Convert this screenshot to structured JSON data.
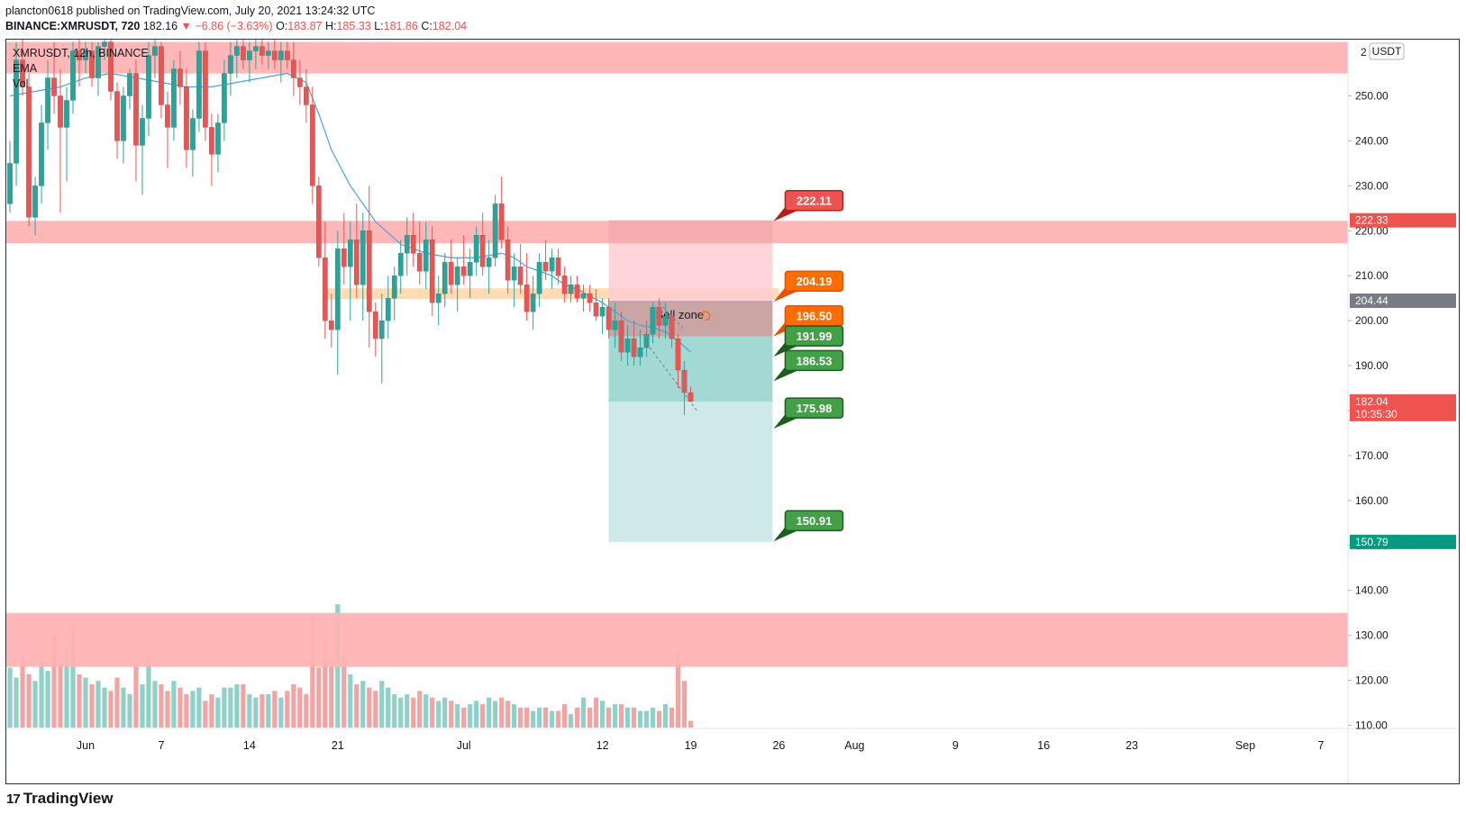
{
  "header": {
    "publisher": "plancton0618 published on TradingView.com, July 20, 2021 13:24:32 UTC",
    "symbol": "BINANCE:XMRUSDT, 720",
    "last": "182.16",
    "change": "−6.86 (−3.63%)",
    "o_label": "O:",
    "o": "183.87",
    "h_label": "H:",
    "h": "185.33",
    "l_label": "L:",
    "l": "181.86",
    "c_label": "C:",
    "c": "182.04"
  },
  "legend": {
    "symbol": "XMRUSDT, 12h, BINANCE",
    "ema": "EMA",
    "vol": "Vol"
  },
  "brand": {
    "name": "TradingView",
    "mark": "17"
  },
  "currency": "USDT",
  "colors": {
    "up": "#26a69a",
    "down": "#ef5350",
    "ema": "#4aa3df",
    "zone": "#ffb3b3"
  },
  "chart_data": {
    "type": "candlestick",
    "y_axis": {
      "ticks": [
        "110.00",
        "120.00",
        "130.00",
        "140.00",
        "150.00",
        "160.00",
        "170.00",
        "180.00",
        "190.00",
        "200.00",
        "210.00",
        "220.00",
        "230.00",
        "240.00",
        "250.00"
      ],
      "tick_values": [
        110,
        120,
        130,
        140,
        150,
        160,
        170,
        180,
        190,
        200,
        210,
        220,
        230,
        240,
        250
      ],
      "top_label": "2"
    },
    "x_axis": {
      "ticks": [
        "Jun",
        "7",
        "14",
        "21",
        "Jul",
        "12",
        "19",
        "26",
        "Aug",
        "9",
        "16",
        "23",
        "Sep",
        "7"
      ],
      "tick_days": [
        1,
        7,
        14,
        21,
        31,
        42,
        49,
        56,
        62,
        70,
        77,
        84,
        93,
        99
      ]
    },
    "price_labels": [
      {
        "text": "222.33",
        "value": 222.33,
        "color": "#ef5350"
      },
      {
        "text": "204.44",
        "value": 204.44,
        "color": "#787b86"
      },
      {
        "text": "182.04",
        "value": 182.04,
        "color": "#ef5350",
        "sub": "10:35:30"
      },
      {
        "text": "150.79",
        "value": 150.79,
        "color": "#089981"
      }
    ],
    "zones": [
      {
        "from": 255,
        "to": 262,
        "color": "#ffb3b3"
      },
      {
        "from": 217.2,
        "to": 222.2,
        "color": "#ffb3b3"
      },
      {
        "from": 123,
        "to": 135,
        "color": "#ffb3b3"
      }
    ],
    "orange_band": {
      "from": 204.8,
      "to": 207.2,
      "day_start": 20,
      "day_end": 56
    },
    "position": {
      "day_start": 42.5,
      "day_end": 55.5,
      "stop_zone": {
        "from": 204.44,
        "to": 222.33
      },
      "sell_zone": {
        "from": 196.5,
        "to": 204.44,
        "label": "Sell zone"
      },
      "target_zone": {
        "from": 150.79,
        "to": 196.5
      }
    },
    "callouts": [
      {
        "text": "222.11",
        "value": 222.11,
        "color": "#ef5350",
        "kind": "stop"
      },
      {
        "text": "204.19",
        "value": 204.19,
        "color": "#ff6d00",
        "kind": "entry"
      },
      {
        "text": "196.50",
        "value": 196.5,
        "color": "#ff6d00",
        "kind": "entry"
      },
      {
        "text": "191.99",
        "value": 191.99,
        "color": "#43a047",
        "kind": "target"
      },
      {
        "text": "186.53",
        "value": 186.53,
        "color": "#43a047",
        "kind": "target"
      },
      {
        "text": "175.98",
        "value": 175.98,
        "color": "#43a047",
        "kind": "target"
      },
      {
        "text": "150.91",
        "value": 150.91,
        "color": "#43a047",
        "kind": "target"
      }
    ],
    "candles": [
      [
        -5,
        226,
        240,
        224,
        235
      ],
      [
        -4.5,
        235,
        262,
        230,
        258
      ],
      [
        -4,
        258,
        263,
        250,
        252
      ],
      [
        -3.5,
        252,
        255,
        221,
        223
      ],
      [
        -3,
        223,
        232,
        219,
        230
      ],
      [
        -2.5,
        230,
        248,
        226,
        244
      ],
      [
        -2,
        244,
        258,
        238,
        254
      ],
      [
        -1.5,
        254,
        262,
        246,
        250
      ],
      [
        -1,
        250,
        256,
        224,
        243
      ],
      [
        -0.5,
        243,
        252,
        231,
        249
      ],
      [
        0,
        249,
        262,
        246,
        260
      ],
      [
        0.5,
        260,
        263,
        252,
        258
      ],
      [
        1,
        258,
        262,
        255,
        260
      ],
      [
        1.5,
        260,
        262,
        252,
        254
      ],
      [
        2,
        254,
        262,
        250,
        261
      ],
      [
        2.5,
        261,
        264,
        258,
        262
      ],
      [
        3,
        262,
        263,
        249,
        251
      ],
      [
        3.5,
        251,
        253,
        236,
        240
      ],
      [
        4,
        240,
        252,
        235,
        250
      ],
      [
        4.5,
        250,
        256,
        247,
        255
      ],
      [
        5,
        255,
        258,
        231,
        239
      ],
      [
        5.5,
        239,
        248,
        228,
        245
      ],
      [
        6,
        245,
        262,
        241,
        259
      ],
      [
        6.5,
        259,
        263,
        254,
        261
      ],
      [
        7,
        261,
        262,
        245,
        248
      ],
      [
        7.5,
        248,
        251,
        234,
        243
      ],
      [
        8,
        243,
        258,
        240,
        256
      ],
      [
        8.5,
        256,
        260,
        248,
        252
      ],
      [
        9,
        252,
        256,
        234,
        238
      ],
      [
        9.5,
        238,
        247,
        232,
        245
      ],
      [
        10,
        245,
        262,
        242,
        260
      ],
      [
        10.5,
        260,
        262,
        240,
        243
      ],
      [
        11,
        243,
        246,
        230,
        237
      ],
      [
        11.5,
        237,
        246,
        233,
        244
      ],
      [
        12,
        244,
        258,
        240,
        255
      ],
      [
        12.5,
        255,
        262,
        250,
        259
      ],
      [
        13,
        259,
        263,
        254,
        261
      ],
      [
        13.5,
        261,
        263,
        256,
        258
      ],
      [
        14,
        258,
        262,
        253,
        260
      ],
      [
        14.5,
        260,
        263,
        256,
        261
      ],
      [
        15,
        261,
        263,
        257,
        259
      ],
      [
        15.5,
        259,
        262,
        256,
        260
      ],
      [
        16,
        260,
        263,
        256,
        258
      ],
      [
        16.5,
        258,
        262,
        253,
        260
      ],
      [
        17,
        260,
        262,
        256,
        258
      ],
      [
        17.5,
        258,
        262,
        250,
        254
      ],
      [
        18,
        254,
        258,
        248,
        252
      ],
      [
        18.5,
        252,
        256,
        244,
        248
      ],
      [
        19,
        248,
        252,
        226,
        230
      ],
      [
        19.5,
        230,
        232,
        212,
        214
      ],
      [
        20,
        214,
        222,
        196,
        200
      ],
      [
        20.5,
        200,
        206,
        194,
        198
      ],
      [
        21,
        198,
        220,
        188,
        216
      ],
      [
        21.5,
        216,
        224,
        208,
        212
      ],
      [
        22,
        212,
        222,
        200,
        218
      ],
      [
        22.5,
        218,
        226,
        205,
        208
      ],
      [
        23,
        208,
        224,
        200,
        220
      ],
      [
        23.5,
        220,
        230,
        194,
        202
      ],
      [
        24,
        202,
        204,
        192,
        196
      ],
      [
        24.5,
        196,
        206,
        186,
        200
      ],
      [
        25,
        200,
        210,
        196,
        205
      ],
      [
        25.5,
        205,
        212,
        200,
        210
      ],
      [
        26,
        210,
        218,
        206,
        215
      ],
      [
        26.5,
        215,
        223,
        210,
        219
      ],
      [
        27,
        219,
        224,
        212,
        215
      ],
      [
        27.5,
        215,
        222,
        208,
        211
      ],
      [
        28,
        211,
        222,
        207,
        218
      ],
      [
        28.5,
        218,
        221,
        201,
        204
      ],
      [
        29,
        204,
        210,
        199,
        206
      ],
      [
        29.5,
        206,
        215,
        203,
        213
      ],
      [
        30,
        213,
        218,
        206,
        208
      ],
      [
        30.5,
        208,
        214,
        202,
        212
      ],
      [
        31,
        212,
        219,
        208,
        210
      ],
      [
        31.5,
        210,
        216,
        205,
        213
      ],
      [
        32,
        213,
        221,
        210,
        219
      ],
      [
        32.5,
        219,
        224,
        210,
        212
      ],
      [
        33,
        212,
        218,
        206,
        214
      ],
      [
        33.5,
        214,
        228,
        212,
        226
      ],
      [
        34,
        226,
        232,
        216,
        218
      ],
      [
        34.5,
        218,
        221,
        206,
        209
      ],
      [
        35,
        209,
        215,
        203,
        212
      ],
      [
        35.5,
        212,
        217,
        206,
        208
      ],
      [
        36,
        208,
        215,
        200,
        202
      ],
      [
        36.5,
        202,
        210,
        198,
        206
      ],
      [
        37,
        206,
        215,
        203,
        213
      ],
      [
        37.5,
        213,
        218,
        209,
        211
      ],
      [
        38,
        211,
        216,
        207,
        214
      ],
      [
        38.5,
        214,
        216,
        208,
        210
      ],
      [
        39,
        210,
        212,
        204,
        206
      ],
      [
        39.5,
        206,
        210,
        204,
        208
      ],
      [
        40,
        208,
        210,
        204,
        205
      ],
      [
        40.5,
        205,
        208,
        202,
        206
      ],
      [
        41,
        206,
        208,
        202,
        204
      ],
      [
        41.5,
        204,
        207,
        200,
        201
      ],
      [
        42,
        201,
        205,
        197,
        203
      ],
      [
        42.5,
        203,
        205,
        196,
        198
      ],
      [
        43,
        198,
        204,
        194,
        200
      ],
      [
        43.5,
        200,
        202,
        191,
        193
      ],
      [
        44,
        193,
        199,
        190,
        196
      ],
      [
        44.5,
        196,
        200,
        190,
        192
      ],
      [
        45,
        192,
        198,
        190,
        194
      ],
      [
        45.5,
        194,
        200,
        192,
        197
      ],
      [
        46,
        197,
        204,
        195,
        203
      ],
      [
        46.5,
        203,
        205,
        196,
        199
      ],
      [
        47,
        199,
        204,
        196,
        201
      ],
      [
        47.5,
        201,
        202,
        194,
        196
      ],
      [
        48,
        196,
        197,
        185,
        189
      ],
      [
        48.5,
        189,
        191,
        179,
        184
      ],
      [
        49,
        184,
        185.33,
        181.86,
        182.04
      ]
    ],
    "ema": [
      [
        -5,
        250
      ],
      [
        -3,
        251
      ],
      [
        -1,
        252
      ],
      [
        1,
        254
      ],
      [
        3,
        255
      ],
      [
        5,
        254
      ],
      [
        7,
        253
      ],
      [
        9,
        252
      ],
      [
        11,
        252
      ],
      [
        13,
        253
      ],
      [
        15,
        254
      ],
      [
        17,
        255
      ],
      [
        18.5,
        253
      ],
      [
        19.5,
        246
      ],
      [
        20.5,
        238
      ],
      [
        22,
        230
      ],
      [
        24,
        222
      ],
      [
        26,
        217
      ],
      [
        28,
        215
      ],
      [
        30,
        214
      ],
      [
        32,
        214
      ],
      [
        34,
        215
      ],
      [
        35,
        214
      ],
      [
        36,
        212
      ],
      [
        37,
        211
      ],
      [
        38,
        210
      ],
      [
        39,
        208
      ],
      [
        40,
        207
      ],
      [
        41,
        205.5
      ],
      [
        42,
        204
      ],
      [
        43,
        202
      ],
      [
        44,
        200
      ],
      [
        45,
        199
      ],
      [
        46,
        198.5
      ],
      [
        47,
        197.5
      ],
      [
        48,
        195.5
      ],
      [
        49,
        193
      ]
    ],
    "volumes": [
      [
        -5,
        1.8
      ],
      [
        -4.5,
        1.5
      ],
      [
        -4,
        2.2
      ],
      [
        -3.5,
        1.6
      ],
      [
        -3,
        1.4
      ],
      [
        -2.5,
        2.0
      ],
      [
        -2,
        1.7
      ],
      [
        -1.5,
        2.8
      ],
      [
        -1,
        1.9
      ],
      [
        -0.5,
        2.4
      ],
      [
        0,
        3.1
      ],
      [
        0.5,
        1.6
      ],
      [
        1,
        1.5
      ],
      [
        1.5,
        1.3
      ],
      [
        2,
        1.4
      ],
      [
        2.5,
        1.2
      ],
      [
        3,
        1.1
      ],
      [
        3.5,
        1.5
      ],
      [
        4,
        1.2
      ],
      [
        4.5,
        1.0
      ],
      [
        5,
        1.9
      ],
      [
        5.5,
        1.3
      ],
      [
        6,
        2.1
      ],
      [
        6.5,
        1.4
      ],
      [
        7,
        1.3
      ],
      [
        7.5,
        1.1
      ],
      [
        8,
        1.4
      ],
      [
        8.5,
        1.2
      ],
      [
        9,
        1.0
      ],
      [
        9.5,
        1.1
      ],
      [
        10,
        1.2
      ],
      [
        10.5,
        0.8
      ],
      [
        11,
        1.0
      ],
      [
        11.5,
        0.9
      ],
      [
        12,
        1.2
      ],
      [
        12.5,
        1.2
      ],
      [
        13,
        1.3
      ],
      [
        13.5,
        1.3
      ],
      [
        14,
        1.0
      ],
      [
        14.5,
        0.9
      ],
      [
        15,
        1.0
      ],
      [
        15.5,
        1.0
      ],
      [
        16,
        1.1
      ],
      [
        16.5,
        0.9
      ],
      [
        17,
        1.1
      ],
      [
        17.5,
        1.3
      ],
      [
        18,
        1.2
      ],
      [
        18.5,
        1.0
      ],
      [
        19,
        3.3
      ],
      [
        19.5,
        1.8
      ],
      [
        20,
        2.6
      ],
      [
        20.5,
        2.0
      ],
      [
        21,
        3.7
      ],
      [
        21.5,
        2.1
      ],
      [
        22,
        1.6
      ],
      [
        22.5,
        1.3
      ],
      [
        23,
        1.4
      ],
      [
        23.5,
        1.2
      ],
      [
        24,
        1.1
      ],
      [
        24.5,
        1.4
      ],
      [
        25,
        1.2
      ],
      [
        25.5,
        1.0
      ],
      [
        26,
        0.9
      ],
      [
        26.5,
        1.0
      ],
      [
        27,
        0.9
      ],
      [
        27.5,
        1.1
      ],
      [
        28,
        1.0
      ],
      [
        28.5,
        0.9
      ],
      [
        29,
        0.8
      ],
      [
        29.5,
        0.9
      ],
      [
        30,
        0.8
      ],
      [
        30.5,
        0.7
      ],
      [
        31,
        0.6
      ],
      [
        31.5,
        0.7
      ],
      [
        32,
        0.8
      ],
      [
        32.5,
        0.7
      ],
      [
        33,
        0.9
      ],
      [
        33.5,
        0.8
      ],
      [
        34,
        0.9
      ],
      [
        34.5,
        0.8
      ],
      [
        35,
        0.7
      ],
      [
        35.5,
        0.6
      ],
      [
        36,
        0.6
      ],
      [
        36.5,
        0.5
      ],
      [
        37,
        0.6
      ],
      [
        37.5,
        0.6
      ],
      [
        38,
        0.5
      ],
      [
        38.5,
        0.5
      ],
      [
        39,
        0.7
      ],
      [
        39.5,
        0.4
      ],
      [
        40,
        0.6
      ],
      [
        40.5,
        0.9
      ],
      [
        41,
        0.6
      ],
      [
        41.5,
        0.9
      ],
      [
        42,
        0.8
      ],
      [
        42.5,
        0.6
      ],
      [
        43,
        0.7
      ],
      [
        43.5,
        0.7
      ],
      [
        44,
        0.6
      ],
      [
        44.5,
        0.6
      ],
      [
        45,
        0.5
      ],
      [
        45.5,
        0.5
      ],
      [
        46,
        0.6
      ],
      [
        46.5,
        0.5
      ],
      [
        47,
        0.7
      ],
      [
        47.5,
        0.6
      ],
      [
        48,
        2.2
      ],
      [
        48.5,
        1.4
      ],
      [
        49,
        0.2
      ]
    ]
  }
}
